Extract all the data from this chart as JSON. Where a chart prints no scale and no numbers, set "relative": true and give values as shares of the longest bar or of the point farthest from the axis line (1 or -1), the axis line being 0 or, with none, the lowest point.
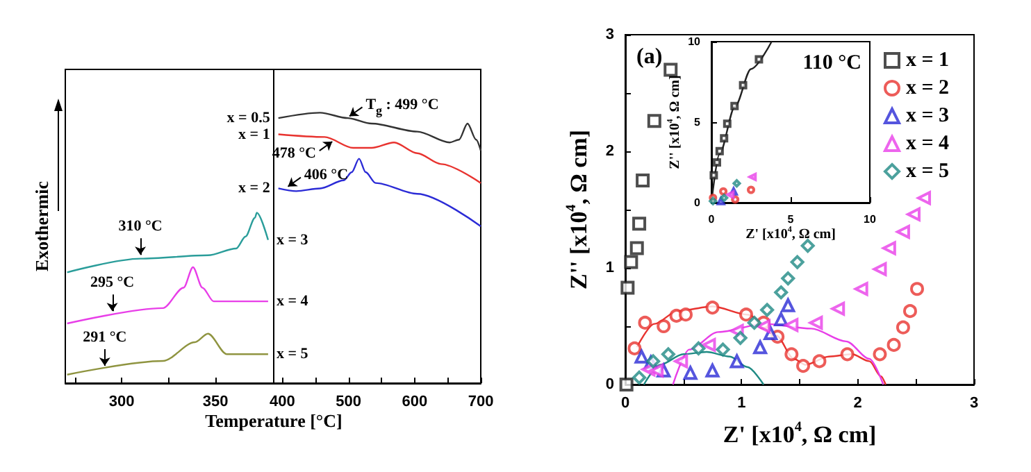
{
  "chart_data": [
    {
      "type": "line",
      "relative": true,
      "ylabel": "Exothermic",
      "xlim": [
        270,
        381
      ],
      "xticks": [
        {
          "value": 275,
          "label": null
        },
        300,
        {
          "value": 325,
          "label": null
        },
        350
      ],
      "annotations": [
        {
          "text": "310 °C",
          "x": 310,
          "y": 0.73
        },
        {
          "text": "295 °C",
          "x": 295,
          "y": 0.4
        },
        {
          "text": "291 °C",
          "x": 291,
          "y": 0.08
        }
      ],
      "series": [
        {
          "name": "x = 3",
          "color": "#2a9d9a",
          "x": [
            271,
            310,
            346,
            361,
            366,
            371,
            372,
            378
          ],
          "values": [
            0.65,
            0.73,
            0.75,
            0.79,
            0.86,
            0.97,
            1,
            0.84
          ]
        },
        {
          "name": "x = 4",
          "color": "#e83ee8",
          "x": [
            271,
            322,
            333,
            338,
            343,
            349,
            363,
            378
          ],
          "values": [
            0.35,
            0.44,
            0.56,
            0.68,
            0.56,
            0.48,
            0.48,
            0.48
          ]
        },
        {
          "name": "x = 5",
          "color": "#8f9440",
          "x": [
            271,
            322,
            339,
            346,
            356,
            378
          ],
          "values": [
            0.05,
            0.13,
            0.24,
            0.29,
            0.17,
            0.17
          ]
        }
      ]
    },
    {
      "type": "line",
      "relative": true,
      "xlabel": "Temperature [°C]",
      "xlim": [
        387,
        700
      ],
      "xticks": [
        400,
        {
          "value": 450,
          "label": null
        },
        500,
        {
          "value": 550,
          "label": null
        },
        600,
        {
          "value": 650,
          "label": null
        },
        700
      ],
      "annotations": [
        {
          "text": "T$_{g}$ : 499 °C",
          "x": 499,
          "y": 0.98
        },
        {
          "text": "478 °C",
          "x": 478,
          "y": 0.9
        },
        {
          "text": "406 °C",
          "x": 406,
          "y": 0.72
        }
      ],
      "series": [
        {
          "name": "x = 0.5",
          "color": "#333333",
          "x": [
            394,
            457,
            499,
            535,
            604,
            653,
            667,
            680,
            693,
            700
          ],
          "values": [
            0.98,
            1,
            0.98,
            0.96,
            0.93,
            0.89,
            0.9,
            0.96,
            0.9,
            0.86
          ]
        },
        {
          "name": "x = 1",
          "color": "#e8332f",
          "x": [
            394,
            464,
            507,
            535,
            569,
            604,
            640,
            700
          ],
          "values": [
            0.92,
            0.91,
            0.87,
            0.87,
            0.89,
            0.85,
            0.81,
            0.74
          ]
        },
        {
          "name": "x = 2",
          "color": "#2b2bd6",
          "x": [
            394,
            421,
            457,
            493,
            505,
            516,
            526,
            541,
            604,
            700
          ],
          "values": [
            0.72,
            0.71,
            0.72,
            0.75,
            0.78,
            0.83,
            0.78,
            0.74,
            0.7,
            0.58
          ]
        }
      ]
    },
    {
      "type": "scatter",
      "xlabel": "Z' [x10$^{4}$, Ω cm]",
      "ylabel": "Z'' [x10$^{4}$, Ω cm]",
      "xlim": [
        0,
        3
      ],
      "ylim": [
        0,
        3
      ],
      "xticks": [
        0,
        {
          "value": 0.5,
          "label": null
        },
        1,
        {
          "value": 1.5,
          "label": null
        },
        2,
        {
          "value": 2.5,
          "label": null
        },
        3
      ],
      "yticks": [
        0,
        {
          "value": 0.5,
          "label": null
        },
        1,
        {
          "value": 1.5,
          "label": null
        },
        2,
        {
          "value": 2.5,
          "label": null
        },
        3
      ],
      "legend": "top right",
      "annotations": [
        "(a)"
      ],
      "series": [
        {
          "name": "x = 1",
          "color": "#222222",
          "marker": "square",
          "x": [
            0.39,
            0.25,
            0.15,
            0.12,
            0.1,
            0.05,
            0.02,
            0.01
          ],
          "values": [
            2.7,
            2.26,
            1.75,
            1.38,
            1.17,
            1.05,
            0.83,
            0
          ]
        },
        {
          "name": "x = 2",
          "color": "#e8332f",
          "marker": "circle",
          "x": [
            0.08,
            0.17,
            0.33,
            0.44,
            0.52,
            0.75,
            1.04,
            1.19,
            1.31,
            1.43,
            1.53,
            1.67,
            1.91,
            2.19,
            2.31,
            2.39,
            2.45,
            2.51
          ],
          "values": [
            0.31,
            0.53,
            0.5,
            0.59,
            0.6,
            0.66,
            0.6,
            0.53,
            0.41,
            0.26,
            0.16,
            0.2,
            0.26,
            0.26,
            0.34,
            0.49,
            0.63,
            0.82
          ]
        },
        {
          "name": "x = 3",
          "color": "#2b2bd6",
          "marker": "triangle",
          "x": [
            0.14,
            0.22,
            0.33,
            0.56,
            0.75,
            0.96,
            1.16,
            1.25,
            1.34,
            1.4
          ],
          "values": [
            0.24,
            0.19,
            0.12,
            0.1,
            0.12,
            0.2,
            0.32,
            0.44,
            0.56,
            0.68
          ]
        },
        {
          "name": "x = 4",
          "color": "#e83ee8",
          "marker": "triangle-left",
          "x": [
            0.2,
            0.27,
            0.48,
            0.72,
            0.96,
            1.19,
            1.43,
            1.64,
            1.83,
            2.03,
            2.19,
            2.27,
            2.39,
            2.48,
            2.57
          ],
          "values": [
            0.13,
            0.12,
            0.2,
            0.34,
            0.46,
            0.5,
            0.51,
            0.53,
            0.65,
            0.82,
            0.99,
            1.17,
            1.31,
            1.46,
            1.6
          ]
        },
        {
          "name": "x = 5",
          "color": "#1f8a84",
          "marker": "diamond",
          "x": [
            0.12,
            0.24,
            0.37,
            0.63,
            0.84,
            0.99,
            1.11,
            1.22,
            1.34,
            1.4,
            1.48,
            1.57
          ],
          "values": [
            0.06,
            0.2,
            0.26,
            0.31,
            0.3,
            0.4,
            0.53,
            0.64,
            0.79,
            0.91,
            1.05,
            1.19
          ]
        },
        {
          "type": "line",
          "color": "#e8332f",
          "marker": "none",
          "x": [
            0.1,
            0.25,
            0.45,
            0.75,
            1.05,
            1.3,
            1.45,
            1.55,
            1.75,
            1.95,
            2.1,
            2.2,
            2.24
          ],
          "values": [
            0.32,
            0.52,
            0.63,
            0.67,
            0.6,
            0.42,
            0.22,
            0.17,
            0.24,
            0.26,
            0.2,
            0.07,
            0
          ]
        },
        {
          "type": "line",
          "color": "#e83ee8",
          "marker": "none",
          "x": [
            0.41,
            0.55,
            0.8,
            1.2,
            1.6,
            1.9,
            2.1,
            2.22
          ],
          "values": [
            0,
            0.3,
            0.45,
            0.52,
            0.48,
            0.37,
            0.22,
            0
          ]
        },
        {
          "type": "line",
          "color": "#1f8a84",
          "marker": "none",
          "x": [
            0.16,
            0.3,
            0.5,
            0.7,
            0.9,
            1.05,
            1.19
          ],
          "values": [
            0,
            0.17,
            0.26,
            0.28,
            0.24,
            0.15,
            0
          ]
        }
      ]
    },
    {
      "type": "scatter",
      "xlabel": "Z' [x10$^{4}$, Ω cm]",
      "ylabel": "Z'' [x10$^{4}$, Ω cm]",
      "xlim": [
        0,
        10
      ],
      "ylim": [
        0,
        10
      ],
      "xticks": [
        0,
        5,
        10
      ],
      "yticks": [
        0,
        5,
        10
      ],
      "annotations": [
        "110 °C"
      ],
      "series": [
        {
          "color": "#222222",
          "marker": "square",
          "x": [
            0.15,
            0.35,
            0.52,
            0.8,
            1,
            1.46,
            2,
            3
          ],
          "values": [
            1.7,
            2.5,
            3.2,
            4,
            4.9,
            6,
            7.3,
            8.9
          ]
        },
        {
          "type": "line",
          "color": "#222222",
          "marker": "none",
          "x": [
            0,
            0.5,
            1.5,
            2.5,
            3.8
          ],
          "values": [
            0,
            3,
            6,
            8.3,
            10
          ]
        },
        {
          "color": "#e8332f",
          "marker": "circle",
          "x": [
            0.1,
            0.75,
            1.5,
            2.5
          ],
          "values": [
            0.3,
            0.7,
            0.2,
            0.8
          ]
        },
        {
          "color": "#2b2bd6",
          "marker": "triangle",
          "x": [
            0.6,
            1.4
          ],
          "values": [
            0.1,
            0.7
          ]
        },
        {
          "color": "#e83ee8",
          "marker": "triangle-left",
          "x": [
            1.2,
            2.6
          ],
          "values": [
            0.5,
            1.6
          ]
        },
        {
          "color": "#1f8a84",
          "marker": "diamond",
          "x": [
            0.1,
            0.8,
            1.6
          ],
          "values": [
            0.1,
            0.3,
            1.2
          ]
        }
      ]
    }
  ]
}
